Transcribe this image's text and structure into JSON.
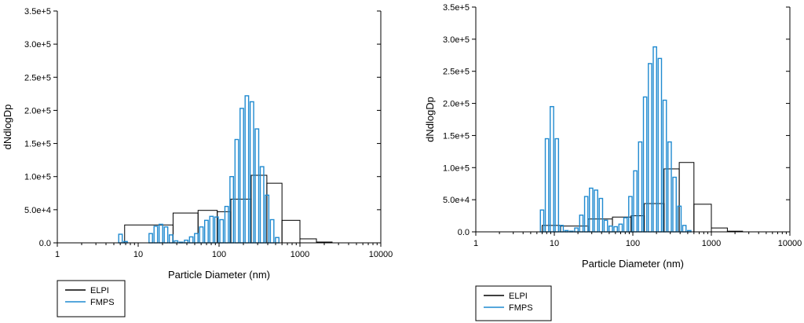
{
  "chart_data": [
    {
      "type": "bar",
      "xlabel": "Particle Diameter (nm)",
      "ylabel": "dNdlogDp",
      "xscale": "log",
      "xlim": [
        1,
        10000
      ],
      "ylim": [
        0,
        350000
      ],
      "xticks": [
        "1",
        "10",
        "100",
        "1000",
        "10000"
      ],
      "yticks": [
        "0.0",
        "5.0e+4",
        "1.0e+5",
        "1.5e+5",
        "2.0e+5",
        "2.5e+5",
        "3.0e+5",
        "3.5e+5"
      ],
      "legend_placement": "below-left",
      "series": [
        {
          "name": "ELPI",
          "color": "#000000",
          "bins": [
            {
              "from": 6.8,
              "to": 27,
              "value": 27000
            },
            {
              "from": 27,
              "to": 55,
              "value": 45000
            },
            {
              "from": 55,
              "to": 95,
              "value": 49000
            },
            {
              "from": 95,
              "to": 140,
              "value": 47000
            },
            {
              "from": 140,
              "to": 250,
              "value": 66000
            },
            {
              "from": 250,
              "to": 390,
              "value": 102000
            },
            {
              "from": 390,
              "to": 600,
              "value": 90000
            },
            {
              "from": 600,
              "to": 1000,
              "value": 34000
            },
            {
              "from": 1000,
              "to": 1600,
              "value": 6000
            },
            {
              "from": 1600,
              "to": 2500,
              "value": 1200
            }
          ]
        },
        {
          "name": "FMPS",
          "color": "#1f8ad0",
          "centers": [
            6.04,
            6.98,
            8.06,
            9.31,
            10.8,
            12.4,
            14.3,
            16.5,
            19.1,
            22.1,
            25.5,
            29.4,
            34.0,
            39.2,
            45.3,
            52.3,
            60.4,
            69.8,
            80.6,
            93.1,
            107.5,
            124.1,
            143.3,
            165.5,
            191.1,
            220.7,
            254.8,
            294.3,
            339.8,
            392.4,
            453.2,
            523.3
          ],
          "values": [
            13000,
            2000,
            0,
            0,
            0,
            0,
            14000,
            25000,
            28000,
            24000,
            12000,
            3000,
            1000,
            4000,
            9000,
            14000,
            24000,
            34000,
            40000,
            39000,
            35000,
            55000,
            100000,
            156000,
            203000,
            222000,
            213000,
            172000,
            115000,
            72000,
            35000,
            8000
          ]
        }
      ]
    },
    {
      "type": "bar",
      "xlabel": "Particle Diameter (nm)",
      "ylabel": "dNdlogDp",
      "xscale": "log",
      "xlim": [
        1,
        10000
      ],
      "ylim": [
        0,
        350000
      ],
      "xticks": [
        "1",
        "10",
        "100",
        "1000",
        "10000"
      ],
      "yticks": [
        "0.0",
        "5.0e+4",
        "1.0e+5",
        "1.5e+5",
        "2.0e+5",
        "2.5e+5",
        "3.0e+5",
        "3.5e+5"
      ],
      "legend_placement": "below-left",
      "series": [
        {
          "name": "ELPI",
          "color": "#000000",
          "bins": [
            {
              "from": 7,
              "to": 12,
              "value": 10000
            },
            {
              "from": 12,
              "to": 27,
              "value": 9000
            },
            {
              "from": 27,
              "to": 55,
              "value": 20000
            },
            {
              "from": 55,
              "to": 95,
              "value": 23000
            },
            {
              "from": 95,
              "to": 140,
              "value": 25000
            },
            {
              "from": 140,
              "to": 250,
              "value": 44000
            },
            {
              "from": 250,
              "to": 390,
              "value": 98000
            },
            {
              "from": 390,
              "to": 600,
              "value": 108000
            },
            {
              "from": 600,
              "to": 1000,
              "value": 43000
            },
            {
              "from": 1000,
              "to": 1600,
              "value": 6000
            },
            {
              "from": 1600,
              "to": 2500,
              "value": 1000
            }
          ]
        },
        {
          "name": "FMPS",
          "color": "#1f8ad0",
          "centers": [
            6.04,
            6.98,
            8.06,
            9.31,
            10.8,
            12.4,
            14.3,
            16.5,
            19.1,
            22.1,
            25.5,
            29.4,
            34.0,
            39.2,
            45.3,
            52.3,
            60.4,
            69.8,
            80.6,
            93.1,
            107.5,
            124.1,
            143.3,
            165.5,
            191.1,
            220.7,
            254.8,
            294.3,
            339.8,
            392.4,
            453.2,
            523.3
          ],
          "values": [
            0,
            34000,
            145000,
            195000,
            145000,
            10000,
            2000,
            1000,
            6000,
            26000,
            55000,
            68000,
            65000,
            52000,
            18000,
            9000,
            8000,
            12000,
            22000,
            55000,
            95000,
            140000,
            210000,
            262000,
            288000,
            270000,
            205000,
            140000,
            85000,
            40000,
            10000,
            2000
          ]
        }
      ]
    }
  ]
}
